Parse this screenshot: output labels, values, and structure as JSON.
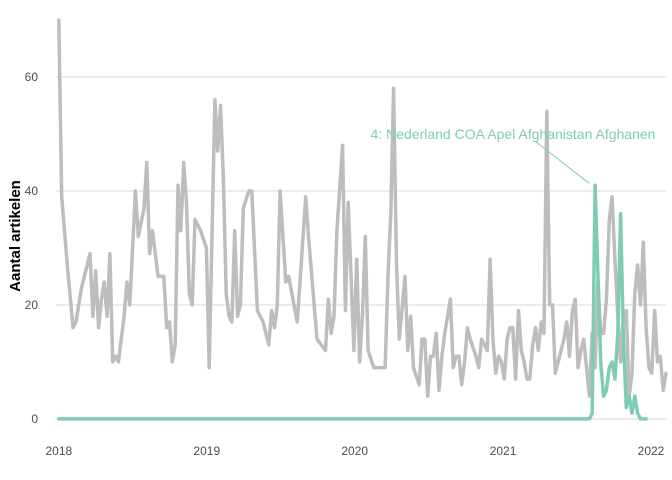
{
  "chart_data": {
    "type": "line",
    "ylabel": "Aantal artikelen",
    "xlabel": "",
    "x_ticks": [
      "2018",
      "2019",
      "2020",
      "2021",
      "2022"
    ],
    "y_ticks": [
      0,
      20,
      40,
      60
    ],
    "xlim": [
      "2017-12-25",
      "2022-02-07"
    ],
    "ylim": [
      -3,
      70
    ],
    "grid": true,
    "legend": "none",
    "colors": {
      "background": "#bdbdbd",
      "highlight": "#7fcbb6"
    },
    "annotation": {
      "label": "4: Nederland COA Apel Afghanistan Afghanen",
      "x": "2021-08-16",
      "y": 41
    },
    "series": [
      {
        "role": "background",
        "points": [
          [
            "2018-01-01",
            70
          ],
          [
            "2018-01-08",
            39
          ],
          [
            "2018-01-22",
            27
          ],
          [
            "2018-02-05",
            16
          ],
          [
            "2018-02-12",
            17
          ],
          [
            "2018-02-26",
            23
          ],
          [
            "2018-03-19",
            29
          ],
          [
            "2018-03-26",
            18
          ],
          [
            "2018-04-02",
            26
          ],
          [
            "2018-04-09",
            16
          ],
          [
            "2018-04-16",
            21
          ],
          [
            "2018-04-23",
            24
          ],
          [
            "2018-04-30",
            18
          ],
          [
            "2018-05-07",
            29
          ],
          [
            "2018-05-14",
            10
          ],
          [
            "2018-05-21",
            11
          ],
          [
            "2018-05-28",
            10
          ],
          [
            "2018-06-11",
            18
          ],
          [
            "2018-06-18",
            24
          ],
          [
            "2018-06-25",
            20
          ],
          [
            "2018-07-09",
            40
          ],
          [
            "2018-07-16",
            32
          ],
          [
            "2018-07-30",
            37
          ],
          [
            "2018-08-06",
            45
          ],
          [
            "2018-08-13",
            29
          ],
          [
            "2018-08-20",
            33
          ],
          [
            "2018-09-03",
            25
          ],
          [
            "2018-09-17",
            25
          ],
          [
            "2018-09-24",
            16
          ],
          [
            "2018-10-01",
            17
          ],
          [
            "2018-10-08",
            10
          ],
          [
            "2018-10-15",
            13
          ],
          [
            "2018-10-22",
            41
          ],
          [
            "2018-10-29",
            33
          ],
          [
            "2018-11-05",
            45
          ],
          [
            "2018-11-12",
            38
          ],
          [
            "2018-11-19",
            22
          ],
          [
            "2018-11-26",
            20
          ],
          [
            "2018-12-03",
            35
          ],
          [
            "2018-12-17",
            33
          ],
          [
            "2018-12-31",
            30
          ],
          [
            "2019-01-07",
            9
          ],
          [
            "2019-01-21",
            56
          ],
          [
            "2019-01-28",
            47
          ],
          [
            "2019-02-04",
            55
          ],
          [
            "2019-02-11",
            42
          ],
          [
            "2019-02-18",
            22
          ],
          [
            "2019-02-25",
            18
          ],
          [
            "2019-03-04",
            17
          ],
          [
            "2019-03-11",
            33
          ],
          [
            "2019-03-18",
            18
          ],
          [
            "2019-03-25",
            20
          ],
          [
            "2019-04-01",
            37
          ],
          [
            "2019-04-15",
            40
          ],
          [
            "2019-04-22",
            40
          ],
          [
            "2019-05-06",
            19
          ],
          [
            "2019-05-20",
            17
          ],
          [
            "2019-06-03",
            13
          ],
          [
            "2019-06-10",
            19
          ],
          [
            "2019-06-17",
            16
          ],
          [
            "2019-06-24",
            20
          ],
          [
            "2019-07-01",
            40
          ],
          [
            "2019-07-15",
            24
          ],
          [
            "2019-07-22",
            25
          ],
          [
            "2019-08-12",
            17
          ],
          [
            "2019-08-19",
            24
          ],
          [
            "2019-09-02",
            39
          ],
          [
            "2019-09-09",
            32
          ],
          [
            "2019-09-30",
            14
          ],
          [
            "2019-10-21",
            12
          ],
          [
            "2019-10-28",
            21
          ],
          [
            "2019-11-04",
            15
          ],
          [
            "2019-11-11",
            18
          ],
          [
            "2019-11-18",
            33
          ],
          [
            "2019-12-02",
            48
          ],
          [
            "2019-12-09",
            19
          ],
          [
            "2019-12-16",
            38
          ],
          [
            "2019-12-30",
            12
          ],
          [
            "2020-01-06",
            28
          ],
          [
            "2020-01-13",
            10
          ],
          [
            "2020-01-20",
            18
          ],
          [
            "2020-01-27",
            32
          ],
          [
            "2020-02-03",
            12
          ],
          [
            "2020-02-17",
            9
          ],
          [
            "2020-03-02",
            9
          ],
          [
            "2020-03-16",
            9
          ],
          [
            "2020-03-23",
            25
          ],
          [
            "2020-03-30",
            36
          ],
          [
            "2020-04-06",
            58
          ],
          [
            "2020-04-13",
            27
          ],
          [
            "2020-04-20",
            14
          ],
          [
            "2020-05-04",
            25
          ],
          [
            "2020-05-11",
            12
          ],
          [
            "2020-05-18",
            18
          ],
          [
            "2020-05-25",
            9
          ],
          [
            "2020-06-08",
            6
          ],
          [
            "2020-06-15",
            14
          ],
          [
            "2020-06-22",
            14
          ],
          [
            "2020-06-29",
            4
          ],
          [
            "2020-07-06",
            11
          ],
          [
            "2020-07-13",
            11
          ],
          [
            "2020-07-20",
            15
          ],
          [
            "2020-07-27",
            5
          ],
          [
            "2020-08-03",
            11
          ],
          [
            "2020-08-10",
            15
          ],
          [
            "2020-08-24",
            21
          ],
          [
            "2020-08-31",
            9
          ],
          [
            "2020-09-07",
            11
          ],
          [
            "2020-09-14",
            11
          ],
          [
            "2020-09-21",
            6
          ],
          [
            "2020-09-28",
            10
          ],
          [
            "2020-10-05",
            16
          ],
          [
            "2020-10-12",
            14
          ],
          [
            "2020-10-26",
            11
          ],
          [
            "2020-11-02",
            9
          ],
          [
            "2020-11-09",
            14
          ],
          [
            "2020-11-23",
            12
          ],
          [
            "2020-11-30",
            28
          ],
          [
            "2020-12-07",
            14
          ],
          [
            "2020-12-14",
            8
          ],
          [
            "2020-12-21",
            11
          ],
          [
            "2020-12-28",
            10
          ],
          [
            "2021-01-04",
            7
          ],
          [
            "2021-01-11",
            14
          ],
          [
            "2021-01-18",
            16
          ],
          [
            "2021-01-25",
            16
          ],
          [
            "2021-02-01",
            7
          ],
          [
            "2021-02-08",
            19
          ],
          [
            "2021-02-15",
            12
          ],
          [
            "2021-02-22",
            10
          ],
          [
            "2021-03-01",
            7
          ],
          [
            "2021-03-08",
            7
          ],
          [
            "2021-03-15",
            13
          ],
          [
            "2021-03-22",
            16
          ],
          [
            "2021-03-29",
            12
          ],
          [
            "2021-04-05",
            17
          ],
          [
            "2021-04-12",
            15
          ],
          [
            "2021-04-19",
            54
          ],
          [
            "2021-04-26",
            20
          ],
          [
            "2021-05-03",
            20
          ],
          [
            "2021-05-10",
            8
          ],
          [
            "2021-05-17",
            10
          ],
          [
            "2021-05-31",
            14
          ],
          [
            "2021-06-07",
            17
          ],
          [
            "2021-06-14",
            11
          ],
          [
            "2021-06-21",
            19
          ],
          [
            "2021-06-28",
            21
          ],
          [
            "2021-07-05",
            9
          ],
          [
            "2021-07-12",
            12
          ],
          [
            "2021-07-19",
            14
          ],
          [
            "2021-08-02",
            4
          ],
          [
            "2021-08-09",
            15
          ],
          [
            "2021-08-16",
            9
          ],
          [
            "2021-08-23",
            24
          ],
          [
            "2021-08-30",
            15
          ],
          [
            "2021-09-06",
            15
          ],
          [
            "2021-09-13",
            21
          ],
          [
            "2021-09-20",
            35
          ],
          [
            "2021-09-27",
            39
          ],
          [
            "2021-10-04",
            28
          ],
          [
            "2021-10-11",
            18
          ],
          [
            "2021-10-18",
            10
          ],
          [
            "2021-10-25",
            18
          ],
          [
            "2021-11-01",
            19
          ],
          [
            "2021-11-08",
            4
          ],
          [
            "2021-11-15",
            8
          ],
          [
            "2021-11-22",
            22
          ],
          [
            "2021-11-29",
            27
          ],
          [
            "2021-12-06",
            20
          ],
          [
            "2021-12-13",
            31
          ],
          [
            "2021-12-20",
            16
          ],
          [
            "2021-12-27",
            9
          ],
          [
            "2022-01-03",
            8
          ],
          [
            "2022-01-10",
            19
          ],
          [
            "2022-01-17",
            10
          ],
          [
            "2022-01-24",
            11
          ],
          [
            "2022-01-31",
            5
          ],
          [
            "2022-02-07",
            8
          ]
        ]
      },
      {
        "role": "highlight",
        "label": "4: Nederland COA Apel Afghanistan Afghanen",
        "points": [
          [
            "2018-01-01",
            0
          ],
          [
            "2021-07-19",
            0
          ],
          [
            "2021-08-02",
            0
          ],
          [
            "2021-08-09",
            1
          ],
          [
            "2021-08-16",
            41
          ],
          [
            "2021-08-30",
            10
          ],
          [
            "2021-09-06",
            4
          ],
          [
            "2021-09-13",
            5
          ],
          [
            "2021-09-20",
            9
          ],
          [
            "2021-09-27",
            10
          ],
          [
            "2021-10-04",
            7
          ],
          [
            "2021-10-11",
            15
          ],
          [
            "2021-10-18",
            36
          ],
          [
            "2021-10-25",
            14
          ],
          [
            "2021-11-01",
            2
          ],
          [
            "2021-11-08",
            4
          ],
          [
            "2021-11-15",
            1
          ],
          [
            "2021-11-22",
            4
          ],
          [
            "2021-11-29",
            1
          ],
          [
            "2021-12-06",
            0
          ],
          [
            "2021-12-20",
            0
          ]
        ]
      }
    ]
  }
}
